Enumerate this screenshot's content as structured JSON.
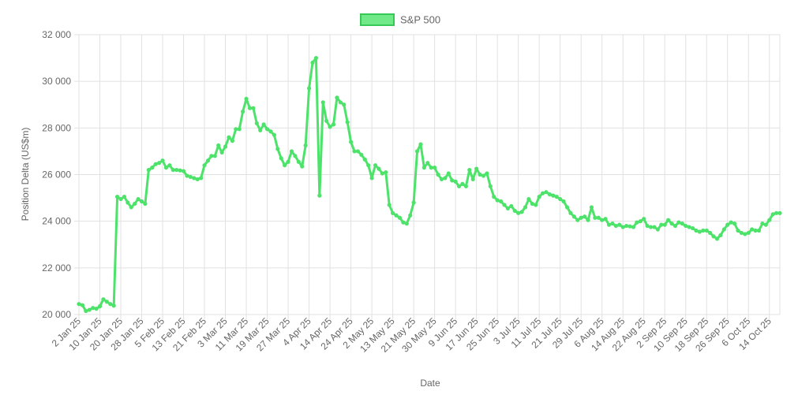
{
  "chart_data": {
    "type": "line",
    "xlabel": "Date",
    "ylabel": "Position Delta (US$m)",
    "ylim": [
      20000,
      32000
    ],
    "y_ticks": [
      "20 000",
      "22 000",
      "24 000",
      "26 000",
      "28 000",
      "30 000",
      "32 000"
    ],
    "grid": true,
    "legend_position": "top-center",
    "x_tick_labels": [
      "2 Jan 25",
      "10 Jan 25",
      "20 Jan 25",
      "28 Jan 25",
      "5 Feb 25",
      "13 Feb 25",
      "21 Feb 25",
      "3 Mar 25",
      "11 Mar 25",
      "19 Mar 25",
      "27 Mar 25",
      "4 Apr 25",
      "14 Apr 25",
      "24 Apr 25",
      "2 May 25",
      "13 May 25",
      "21 May 25",
      "30 May 25",
      "9 Jun 25",
      "17 Jun 25",
      "25 Jun 25",
      "3 Jul 25",
      "11 Jul 25",
      "21 Jul 25",
      "29 Jul 25",
      "6 Aug 25",
      "14 Aug 25",
      "22 Aug 25",
      "2 Sep 25",
      "10 Sep 25",
      "18 Sep 25",
      "26 Sep 25",
      "6 Oct 25",
      "14 Oct 25"
    ],
    "points_per_tick": 6,
    "series": [
      {
        "name": "S&P 500",
        "color": "#4de36a",
        "values": [
          20450,
          20400,
          20150,
          20200,
          20280,
          20250,
          20350,
          20650,
          20550,
          20450,
          20380,
          25050,
          24950,
          25050,
          24800,
          24600,
          24750,
          24950,
          24850,
          24750,
          26200,
          26300,
          26450,
          26500,
          26600,
          26300,
          26400,
          26200,
          26200,
          26180,
          26150,
          25950,
          25900,
          25850,
          25800,
          25850,
          26400,
          26600,
          26800,
          26800,
          27250,
          26950,
          27200,
          27600,
          27450,
          27950,
          27950,
          28700,
          29250,
          28850,
          28850,
          28200,
          27900,
          28150,
          27950,
          27850,
          27700,
          27100,
          26700,
          26400,
          26550,
          27000,
          26800,
          26550,
          26350,
          27250,
          29700,
          30800,
          31000,
          25100,
          29100,
          28300,
          28050,
          28150,
          29300,
          29100,
          29000,
          28250,
          27400,
          27000,
          27000,
          26850,
          26650,
          26400,
          25850,
          26400,
          26250,
          26050,
          26100,
          24700,
          24350,
          24250,
          24150,
          23950,
          23900,
          24250,
          24800,
          27000,
          27300,
          26300,
          26500,
          26300,
          26300,
          26000,
          25800,
          25850,
          26050,
          25750,
          25700,
          25500,
          25600,
          25500,
          26200,
          25800,
          26250,
          26000,
          25950,
          26050,
          25500,
          25050,
          24900,
          24850,
          24700,
          24550,
          24650,
          24450,
          24350,
          24400,
          24600,
          24950,
          24750,
          24700,
          25050,
          25200,
          25250,
          25150,
          25100,
          25050,
          24950,
          24850,
          24600,
          24350,
          24200,
          24050,
          24150,
          24200,
          24050,
          24600,
          24150,
          24150,
          24050,
          24100,
          23850,
          23900,
          23800,
          23850,
          23750,
          23800,
          23780,
          23750,
          23950,
          24000,
          24100,
          23800,
          23750,
          23750,
          23650,
          23850,
          23850,
          24050,
          23900,
          23800,
          23950,
          23900,
          23800,
          23750,
          23700,
          23600,
          23550,
          23600,
          23600,
          23500,
          23350,
          23250,
          23400,
          23650,
          23850,
          23950,
          23900,
          23600,
          23500,
          23450,
          23500,
          23650,
          23600,
          23600,
          23900,
          23850,
          24050,
          24300,
          24350,
          24350
        ]
      }
    ]
  }
}
